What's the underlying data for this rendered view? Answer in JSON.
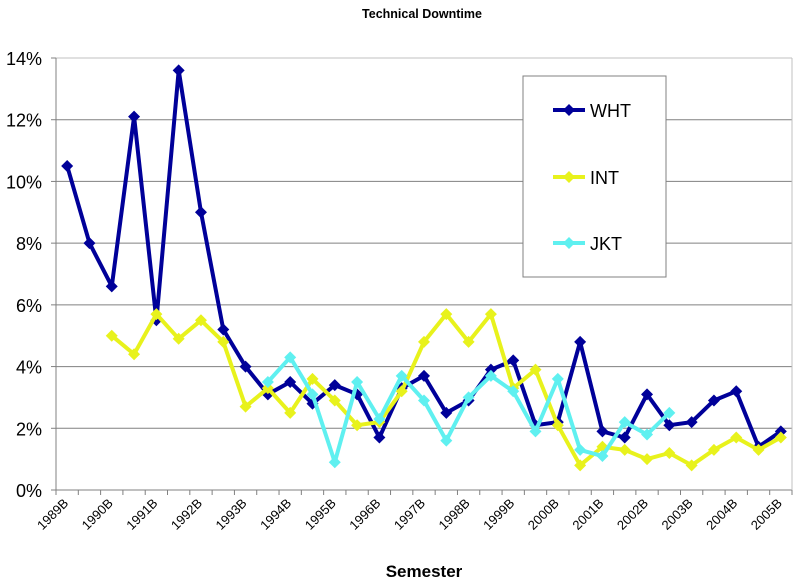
{
  "chart_data": {
    "type": "line",
    "title": "Technical Downtime",
    "xlabel": "Semester",
    "ylabel": "",
    "ylim": [
      0,
      14
    ],
    "y_unit": "%",
    "y_ticks": [
      "0%",
      "2%",
      "4%",
      "6%",
      "8%",
      "10%",
      "12%",
      "14%"
    ],
    "y_tick_values": [
      0,
      2,
      4,
      6,
      8,
      10,
      12,
      14
    ],
    "grid": true,
    "legend_position": "top-right",
    "categories": [
      "1989B",
      "",
      "1990B",
      "",
      "1991B",
      "",
      "1992B",
      "",
      "1993B",
      "",
      "1994B",
      "",
      "1995B",
      "",
      "1996B",
      "",
      "1997B",
      "",
      "1998B",
      "",
      "1999B",
      "",
      "2000B",
      "",
      "2001B",
      "",
      "2002B",
      "",
      "2003B",
      "",
      "2004B",
      "",
      "2005B"
    ],
    "series": [
      {
        "name": "WHT",
        "color": "#000099",
        "values": [
          10.5,
          8.0,
          6.6,
          12.1,
          5.5,
          13.6,
          9.0,
          5.2,
          4.0,
          3.1,
          3.5,
          2.8,
          3.4,
          3.1,
          1.7,
          3.3,
          3.7,
          2.5,
          2.9,
          3.9,
          4.2,
          2.1,
          2.2,
          4.8,
          1.9,
          1.7,
          3.1,
          2.1,
          2.2,
          2.9,
          3.2,
          1.4,
          1.9
        ]
      },
      {
        "name": "INT",
        "color": "#e8f21c",
        "values": [
          null,
          null,
          5.0,
          4.4,
          5.7,
          4.9,
          5.5,
          4.8,
          2.7,
          3.3,
          2.5,
          3.6,
          2.9,
          2.1,
          2.2,
          3.2,
          4.8,
          5.7,
          4.8,
          5.7,
          3.3,
          3.9,
          2.1,
          0.8,
          1.4,
          1.3,
          1.0,
          1.2,
          0.8,
          1.3,
          1.7,
          1.3,
          1.7
        ]
      },
      {
        "name": "JKT",
        "color": "#5ff0f0",
        "values": [
          null,
          null,
          null,
          null,
          null,
          null,
          null,
          null,
          null,
          3.5,
          4.3,
          3.1,
          0.9,
          3.5,
          2.3,
          3.7,
          2.9,
          1.6,
          3.0,
          3.7,
          3.2,
          1.9,
          3.6,
          1.3,
          1.1,
          2.2,
          1.8,
          2.5,
          null,
          null,
          null,
          null,
          null
        ]
      }
    ]
  }
}
